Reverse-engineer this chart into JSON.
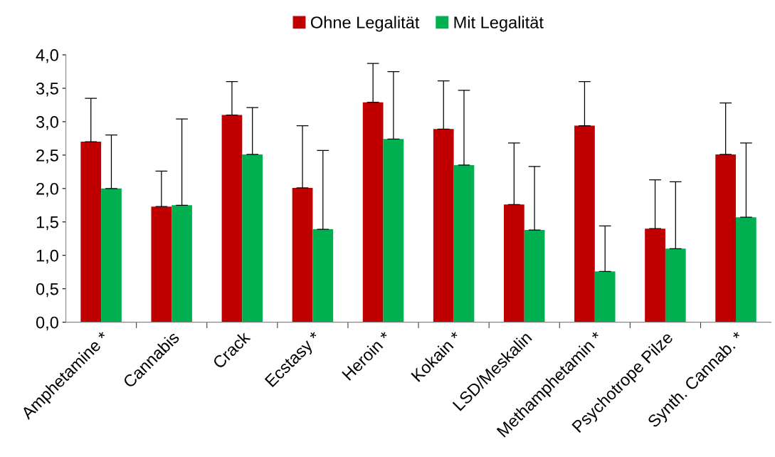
{
  "chart_data": {
    "type": "bar",
    "categories": [
      "Amphetamine *",
      "Cannabis",
      "Crack",
      "Ecstasy *",
      "Heroin *",
      "Kokain *",
      "LSD/Meskalin",
      "Methamphetamin *",
      "Psychotrope Pilze",
      "Synth. Cannab. *"
    ],
    "series": [
      {
        "name": "Ohne Legalität",
        "color": "#c00000",
        "values": [
          2.7,
          1.73,
          3.1,
          2.01,
          3.29,
          2.89,
          1.76,
          2.94,
          1.4,
          2.51
        ],
        "errors": [
          [
            2.7,
            3.35
          ],
          [
            1.73,
            2.26
          ],
          [
            3.1,
            3.6
          ],
          [
            2.01,
            2.94
          ],
          [
            3.29,
            3.87
          ],
          [
            2.89,
            3.61
          ],
          [
            1.76,
            2.68
          ],
          [
            2.94,
            3.6
          ],
          [
            1.4,
            2.13
          ],
          [
            2.51,
            3.28
          ]
        ]
      },
      {
        "name": "Mit Legalität",
        "color": "#00b050",
        "values": [
          2.0,
          1.75,
          2.51,
          1.39,
          2.74,
          2.35,
          1.38,
          0.76,
          1.1,
          1.57
        ],
        "errors": [
          [
            2.0,
            2.8
          ],
          [
            1.75,
            3.04
          ],
          [
            2.51,
            3.21
          ],
          [
            1.39,
            2.57
          ],
          [
            2.74,
            3.75
          ],
          [
            2.35,
            3.47
          ],
          [
            1.38,
            2.33
          ],
          [
            0.76,
            1.44
          ],
          [
            1.1,
            2.1
          ],
          [
            1.57,
            2.68
          ]
        ]
      }
    ],
    "ylim": [
      0,
      4.0
    ],
    "yticks": [
      {
        "value": 0,
        "label": "0,0"
      },
      {
        "value": 0.5,
        "label": "0,5"
      },
      {
        "value": 1.0,
        "label": "1,0"
      },
      {
        "value": 1.5,
        "label": "1,5"
      },
      {
        "value": 2.0,
        "label": "2,0"
      },
      {
        "value": 2.5,
        "label": "2,5"
      },
      {
        "value": 3.0,
        "label": "3,0"
      },
      {
        "value": 3.5,
        "label": "3,5"
      },
      {
        "value": 4.0,
        "label": "4,0"
      }
    ],
    "grid": false,
    "legend": "top"
  }
}
